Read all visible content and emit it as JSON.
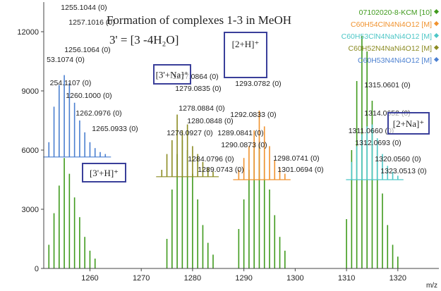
{
  "chart_data": {
    "type": "stem",
    "title": "Formation of complexes 1-3 in MeOH",
    "subtitle": "3' = [3 -4H₂O]",
    "x_label": "m/z",
    "xlim": [
      1251,
      1328
    ],
    "xticks": [
      1260,
      1270,
      1280,
      1290,
      1300,
      1310,
      1320
    ],
    "ylim": [
      0,
      13500
    ],
    "yticks": [
      0,
      3000,
      6000,
      9000,
      12000
    ],
    "legend": "top-right",
    "series": [
      {
        "name": "07102020-8-KCM [10]",
        "color": "#3f9a1c",
        "baseline": 0,
        "x": [
          1252,
          1253,
          1254,
          1255,
          1256,
          1257,
          1258,
          1259,
          1260,
          1261,
          1275,
          1276,
          1277,
          1278,
          1279,
          1280,
          1281,
          1282,
          1283,
          1284,
          1289,
          1290,
          1291,
          1292,
          1293,
          1294,
          1295,
          1296,
          1297,
          1298,
          1310,
          1311,
          1312,
          1313,
          1314,
          1315,
          1316,
          1317,
          1318,
          1319,
          1320
        ],
        "values": [
          1200,
          2800,
          4200,
          5600,
          4800,
          3600,
          2600,
          1600,
          900,
          500,
          1500,
          4000,
          5800,
          6500,
          6000,
          4800,
          3500,
          2200,
          1300,
          700,
          2000,
          3500,
          5000,
          6000,
          6300,
          5500,
          4000,
          2700,
          1600,
          900,
          2500,
          6000,
          9500,
          11800,
          11000,
          8500,
          6000,
          3800,
          2200,
          1200,
          600
        ]
      },
      {
        "name": "C60H54ClN4Ni4O12 [M]",
        "color": "#f0922e",
        "baseline": 4500,
        "x": [
          1289,
          1290,
          1291,
          1292,
          1293,
          1294,
          1295,
          1296,
          1297,
          1298
        ],
        "values": [
          5000,
          5600,
          6200,
          7000,
          8000,
          7200,
          6200,
          5500,
          5100,
          4800
        ]
      },
      {
        "name": "C60H53ClN4NaNi4O12 [M]",
        "color": "#4cc6c6",
        "baseline": 4500,
        "x": [
          1311,
          1312,
          1313,
          1314,
          1315,
          1316,
          1317,
          1318,
          1319,
          1320
        ],
        "values": [
          5400,
          6200,
          6800,
          7200,
          7300,
          6600,
          5800,
          5200,
          4900,
          4700
        ]
      },
      {
        "name": "C60H52N4NaNi4O12 [M]",
        "color": "#8b8b22",
        "baseline": 4650,
        "x": [
          1274,
          1275,
          1276,
          1277,
          1278,
          1279,
          1280,
          1281,
          1282,
          1283,
          1284
        ],
        "values": [
          5000,
          5800,
          6500,
          7800,
          7000,
          7300,
          6200,
          5800,
          5400,
          5100,
          4900
        ]
      },
      {
        "name": "C60H53N4Ni4O12 [M]",
        "color": "#4a7fd0",
        "baseline": 5650,
        "x": [
          1252,
          1253,
          1254,
          1255,
          1256,
          1257,
          1258,
          1259,
          1260,
          1261,
          1262,
          1263
        ],
        "values": [
          6400,
          8200,
          9300,
          9800,
          9400,
          8400,
          7500,
          6900,
          6400,
          6100,
          5900,
          5800
        ]
      }
    ],
    "peak_labels": [
      "1255.1044 (0)",
      "1257.1016 (0)",
      "1256.1064 (0)",
      "53.1074 (0)",
      "254.1107 (0)",
      "1260.1000 (0)",
      "1262.0976 (0)",
      "1265.0933 (0)",
      "1277.0864 (0)",
      "1279.0835 (0)",
      "1278.0884 (0)",
      "1280.0848 (0)",
      "1276.0927 (0)",
      "1284.0796 (0)",
      "1289.0743 (0)",
      "1293.0782 (0)",
      "1292.0833 (0)",
      "1289.0841 (0)",
      "1290.0873 (0)",
      "1298.0741 (0)",
      "1301.0694 (0)",
      "1315.0601 (0)",
      "1314.0652 (0)",
      "1311.0660 (0)",
      "1312.0693 (0)",
      "1320.0560 (0)",
      "1323.0513 (0)"
    ],
    "annotations": [
      "[3'+H]⁺",
      "[3'+Na]⁺",
      "[2+H]⁺",
      "[2+Na]⁺"
    ]
  }
}
